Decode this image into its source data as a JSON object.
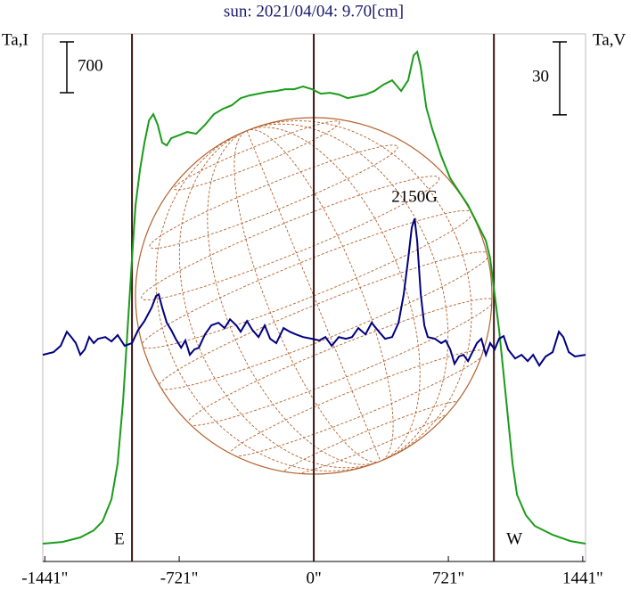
{
  "chart_data": {
    "type": "line",
    "title": "sun: 2021/04/04: 9.70[cm]",
    "xlim": [
      -1452,
      1456
    ],
    "xticks": [
      {
        "value": -1441,
        "label": "-1441\""
      },
      {
        "value": -721,
        "label": "-721\""
      },
      {
        "value": 0,
        "label": "0\""
      },
      {
        "value": 721,
        "label": "721\""
      },
      {
        "value": 1441,
        "label": "1441\""
      }
    ],
    "ylim": [
      -220,
      7050
    ],
    "y2lim": [
      -85,
      132
    ],
    "scale_bars": [
      {
        "value": 700,
        "axis": "y"
      },
      {
        "value": 30,
        "axis": "y2"
      }
    ],
    "markers": [
      {
        "x": -974,
        "label": "E"
      },
      {
        "x": 0
      },
      {
        "x": 965,
        "label": "W"
      }
    ],
    "annotations": [
      {
        "text": "2150G",
        "x": 540
      }
    ],
    "series": [
      {
        "name": "Ta,I",
        "color": "#1a9c1a",
        "axis": "y",
        "x": [
          -1452,
          -1347,
          -1251,
          -1179,
          -1132,
          -1084,
          -1051,
          -1022,
          -998,
          -974,
          -955,
          -931,
          -907,
          -883,
          -860,
          -836,
          -812,
          -788,
          -764,
          -726,
          -678,
          -630,
          -583,
          -535,
          -487,
          -439,
          -392,
          -344,
          -296,
          -248,
          -201,
          -153,
          -105,
          -57,
          -10,
          38,
          86,
          134,
          181,
          229,
          277,
          325,
          372,
          420,
          468,
          506,
          535,
          554,
          573,
          602,
          635,
          683,
          731,
          778,
          826,
          874,
          922,
          945,
          969,
          993,
          1017,
          1041,
          1065,
          1089,
          1136,
          1184,
          1280,
          1375,
          1456
        ],
        "values": [
          25,
          49,
          111,
          209,
          332,
          639,
          1130,
          1989,
          2972,
          3954,
          4691,
          5182,
          5551,
          5858,
          5944,
          5796,
          5551,
          5514,
          5612,
          5649,
          5698,
          5673,
          5796,
          5944,
          6017,
          6066,
          6165,
          6201,
          6226,
          6251,
          6263,
          6287,
          6287,
          6324,
          6287,
          6226,
          6238,
          6214,
          6165,
          6189,
          6214,
          6263,
          6349,
          6410,
          6263,
          6410,
          6754,
          6803,
          6594,
          6042,
          5735,
          5366,
          5059,
          4875,
          4691,
          4445,
          4200,
          3954,
          3463,
          2972,
          2358,
          1744,
          1130,
          700,
          418,
          270,
          147,
          61,
          25
        ]
      },
      {
        "name": "Ta,V",
        "color": "#000080",
        "axis": "y2",
        "x": [
          -1452,
          -1394,
          -1356,
          -1323,
          -1299,
          -1275,
          -1251,
          -1227,
          -1203,
          -1179,
          -1156,
          -1117,
          -1084,
          -1051,
          -1013,
          -974,
          -941,
          -907,
          -869,
          -845,
          -831,
          -812,
          -788,
          -764,
          -740,
          -711,
          -688,
          -664,
          -640,
          -616,
          -583,
          -549,
          -511,
          -478,
          -449,
          -415,
          -392,
          -358,
          -329,
          -296,
          -263,
          -234,
          -201,
          -162,
          -129,
          -96,
          -57,
          -10,
          29,
          62,
          96,
          134,
          172,
          205,
          239,
          277,
          310,
          349,
          382,
          420,
          454,
          482,
          506,
          525,
          540,
          554,
          573,
          592,
          611,
          649,
          683,
          707,
          731,
          754,
          778,
          802,
          826,
          850,
          874,
          898,
          922,
          945,
          969,
          993,
          1017,
          1041,
          1079,
          1113,
          1146,
          1175,
          1208,
          1242,
          1280,
          1313,
          1337,
          1366,
          1399,
          1456
        ],
        "values": [
          0,
          1.1,
          3.7,
          9.5,
          7.3,
          4.8,
          0,
          2.2,
          7.3,
          4.8,
          6.6,
          7.3,
          5.5,
          8.1,
          3.7,
          4.8,
          10.2,
          13.9,
          19.4,
          24.2,
          24.9,
          19.4,
          13.2,
          10.2,
          6.6,
          2.9,
          5.9,
          0,
          2.2,
          2.9,
          8.4,
          12.1,
          13.2,
          11.0,
          14.6,
          12.1,
          9.5,
          13.9,
          10.2,
          7.3,
          12.1,
          6.6,
          4.8,
          11.0,
          9.5,
          8.4,
          7.3,
          6.6,
          5.9,
          7.3,
          3.7,
          7.3,
          6.6,
          7.3,
          11.0,
          8.4,
          13.2,
          9.5,
          6.6,
          7.3,
          13.2,
          24.9,
          39.5,
          52.3,
          56.0,
          46.8,
          24.9,
          12.1,
          7.3,
          6.6,
          4.8,
          5.9,
          2.2,
          -3.7,
          -0.7,
          0,
          -2.6,
          1.1,
          4.8,
          6.6,
          0,
          4.8,
          2.2,
          6.6,
          7.7,
          2.2,
          -1.5,
          0,
          -2.6,
          0,
          -4.4,
          -0.7,
          1.1,
          9.5,
          7.3,
          1.1,
          -0.7,
          0
        ]
      }
    ]
  }
}
